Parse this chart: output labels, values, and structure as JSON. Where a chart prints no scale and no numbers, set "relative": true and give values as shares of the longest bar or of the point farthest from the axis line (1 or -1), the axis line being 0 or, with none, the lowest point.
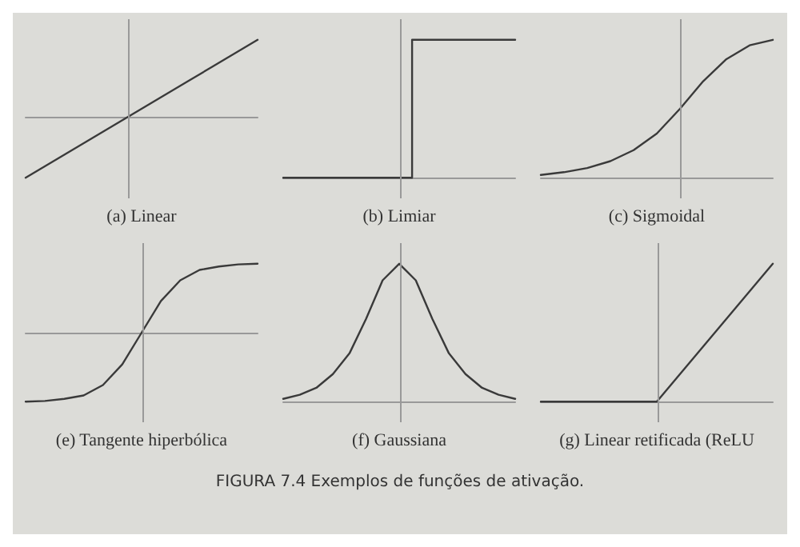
{
  "chart_data": [
    {
      "type": "line",
      "title": "(a) Linear",
      "categories": [
        null,
        null,
        null,
        null,
        null,
        null,
        null,
        null,
        null,
        null,
        null
      ],
      "values": [
        -0.8,
        -0.62,
        -0.44,
        -0.26,
        -0.08,
        0.1,
        0.28,
        0.46,
        0.64,
        0.82,
        1
      ],
      "color": "#3a3a3a",
      "relative": true,
      "marker": "none",
      "line_style": "solid"
    },
    {
      "type": "step",
      "title": "(b) Limiar",
      "categories": [
        null,
        null,
        null,
        null,
        null,
        null,
        null,
        null,
        null,
        null
      ],
      "values": [
        0,
        0,
        0,
        0,
        0,
        1,
        1,
        1,
        1,
        1
      ],
      "color": "#3a3a3a",
      "relative": true,
      "marker": "none",
      "line_style": "solid"
    },
    {
      "type": "line",
      "title": "(c) Sigmoidal",
      "categories": [
        null,
        null,
        null,
        null,
        null,
        null,
        null,
        null,
        null,
        null,
        null
      ],
      "values": [
        0.02,
        0.04,
        0.07,
        0.12,
        0.2,
        0.32,
        0.5,
        0.7,
        0.86,
        0.96,
        1
      ],
      "color": "#3a3a3a",
      "relative": true,
      "marker": "none",
      "line_style": "solid"
    },
    {
      "type": "line",
      "title": "(e) Tangente hiperbólica",
      "categories": [
        null,
        null,
        null,
        null,
        null,
        null,
        null,
        null,
        null,
        null,
        null,
        null,
        null
      ],
      "values": [
        -1,
        -0.99,
        -0.96,
        -0.91,
        -0.76,
        -0.46,
        0,
        0.46,
        0.76,
        0.91,
        0.96,
        0.99,
        1
      ],
      "color": "#3a3a3a",
      "relative": true,
      "marker": "none",
      "line_style": "solid"
    },
    {
      "type": "line",
      "title": "(f) Gaussiana",
      "categories": [
        null,
        null,
        null,
        null,
        null,
        null,
        null,
        null,
        null,
        null,
        null,
        null,
        null,
        null,
        null
      ],
      "values": [
        0.02,
        0.05,
        0.1,
        0.2,
        0.35,
        0.6,
        0.88,
        1,
        0.88,
        0.6,
        0.35,
        0.2,
        0.1,
        0.05,
        0.02
      ],
      "color": "#3a3a3a",
      "relative": true,
      "marker": "none",
      "line_style": "solid",
      "annotations": [
        "FIGURA 7.4 Exemplos de funções de ativação."
      ]
    },
    {
      "type": "line",
      "title": "(g) Linear retificada (ReLU",
      "categories": [
        null,
        null,
        null,
        null,
        null,
        null,
        null,
        null,
        null,
        null,
        null
      ],
      "values": [
        0,
        0,
        0,
        0,
        0,
        0,
        0.2,
        0.4,
        0.6,
        0.8,
        1
      ],
      "color": "#3a3a3a",
      "relative": true,
      "marker": "none",
      "line_style": "solid"
    }
  ]
}
